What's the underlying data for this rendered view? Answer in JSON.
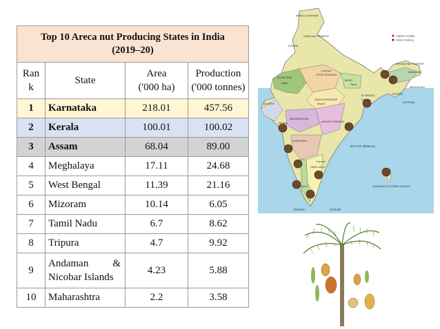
{
  "table": {
    "title_line1": "Top 10 Areca nut Producing States in India",
    "title_line2": "(2019–20)",
    "headers": {
      "rank_line1": "Ran",
      "rank_line2": "k",
      "state": "State",
      "area_line1": "Area",
      "area_line2": "('000 ha)",
      "production_line1": "Production",
      "production_line2": "('000 tonnes)"
    },
    "rows": [
      {
        "rank": "1",
        "state": "Karnataka",
        "area": "218.01",
        "production": "457.56"
      },
      {
        "rank": "2",
        "state": "Kerala",
        "area": "100.01",
        "production": "100.02"
      },
      {
        "rank": "3",
        "state": "Assam",
        "area": "68.04",
        "production": "89.00"
      },
      {
        "rank": "4",
        "state": "Meghalaya",
        "area": "17.11",
        "production": "24.68"
      },
      {
        "rank": "5",
        "state": "West Bengal",
        "area": "11.39",
        "production": "21.16"
      },
      {
        "rank": "6",
        "state": "Mizoram",
        "area": "10.14",
        "production": "6.05"
      },
      {
        "rank": "7",
        "state": "Tamil Nadu",
        "area": "6.7",
        "production": "8.62"
      },
      {
        "rank": "8",
        "state": "Tripura",
        "area": "4.7",
        "production": "9.92"
      },
      {
        "rank": "9",
        "state_line1a": "Andaman",
        "state_line1b": "&",
        "state_line2": "Nicobar Islands",
        "area": "4.23",
        "production": "5.88"
      },
      {
        "rank": "10",
        "state": "Maharashtra",
        "area": "2.2",
        "production": "3.58"
      }
    ]
  },
  "map": {
    "legend": [
      "Capital of State",
      "Union Territory"
    ],
    "sea_labels": [
      "BAY OF BENGAL",
      "INDIAN",
      "OCEAN"
    ],
    "places": [
      "JAMMU & KASHMIR",
      "HIMACHAL PRADESH",
      "PUNJAB",
      "RAJASTHAN",
      "UTTAR PRADESH",
      "BIHAR",
      "MADHYA PRADESH",
      "MAHARASHTRA",
      "ANDHRA PRADESH",
      "ARUNACHAL PRADESH",
      "NAGALAND",
      "MEGHALAYA",
      "MIZORAM",
      "TRIPURA",
      "W. BENGAL",
      "GUJARAT",
      "KARNATAKA",
      "KERALA",
      "TAMIL NADU",
      "ANDAMAN & NICOBAR ISLANDS",
      "Lucknow",
      "Jaipur",
      "Patna",
      "Chennai",
      "Bhopal",
      "Kolkata",
      "Mumbai"
    ]
  },
  "colors": {
    "title_bg": "#fbe3d2",
    "row1_bg": "#fff6d4",
    "row2_bg": "#d8e2f3",
    "row3_bg": "#d3d3d3",
    "map_sea": "#a9d6ea"
  }
}
